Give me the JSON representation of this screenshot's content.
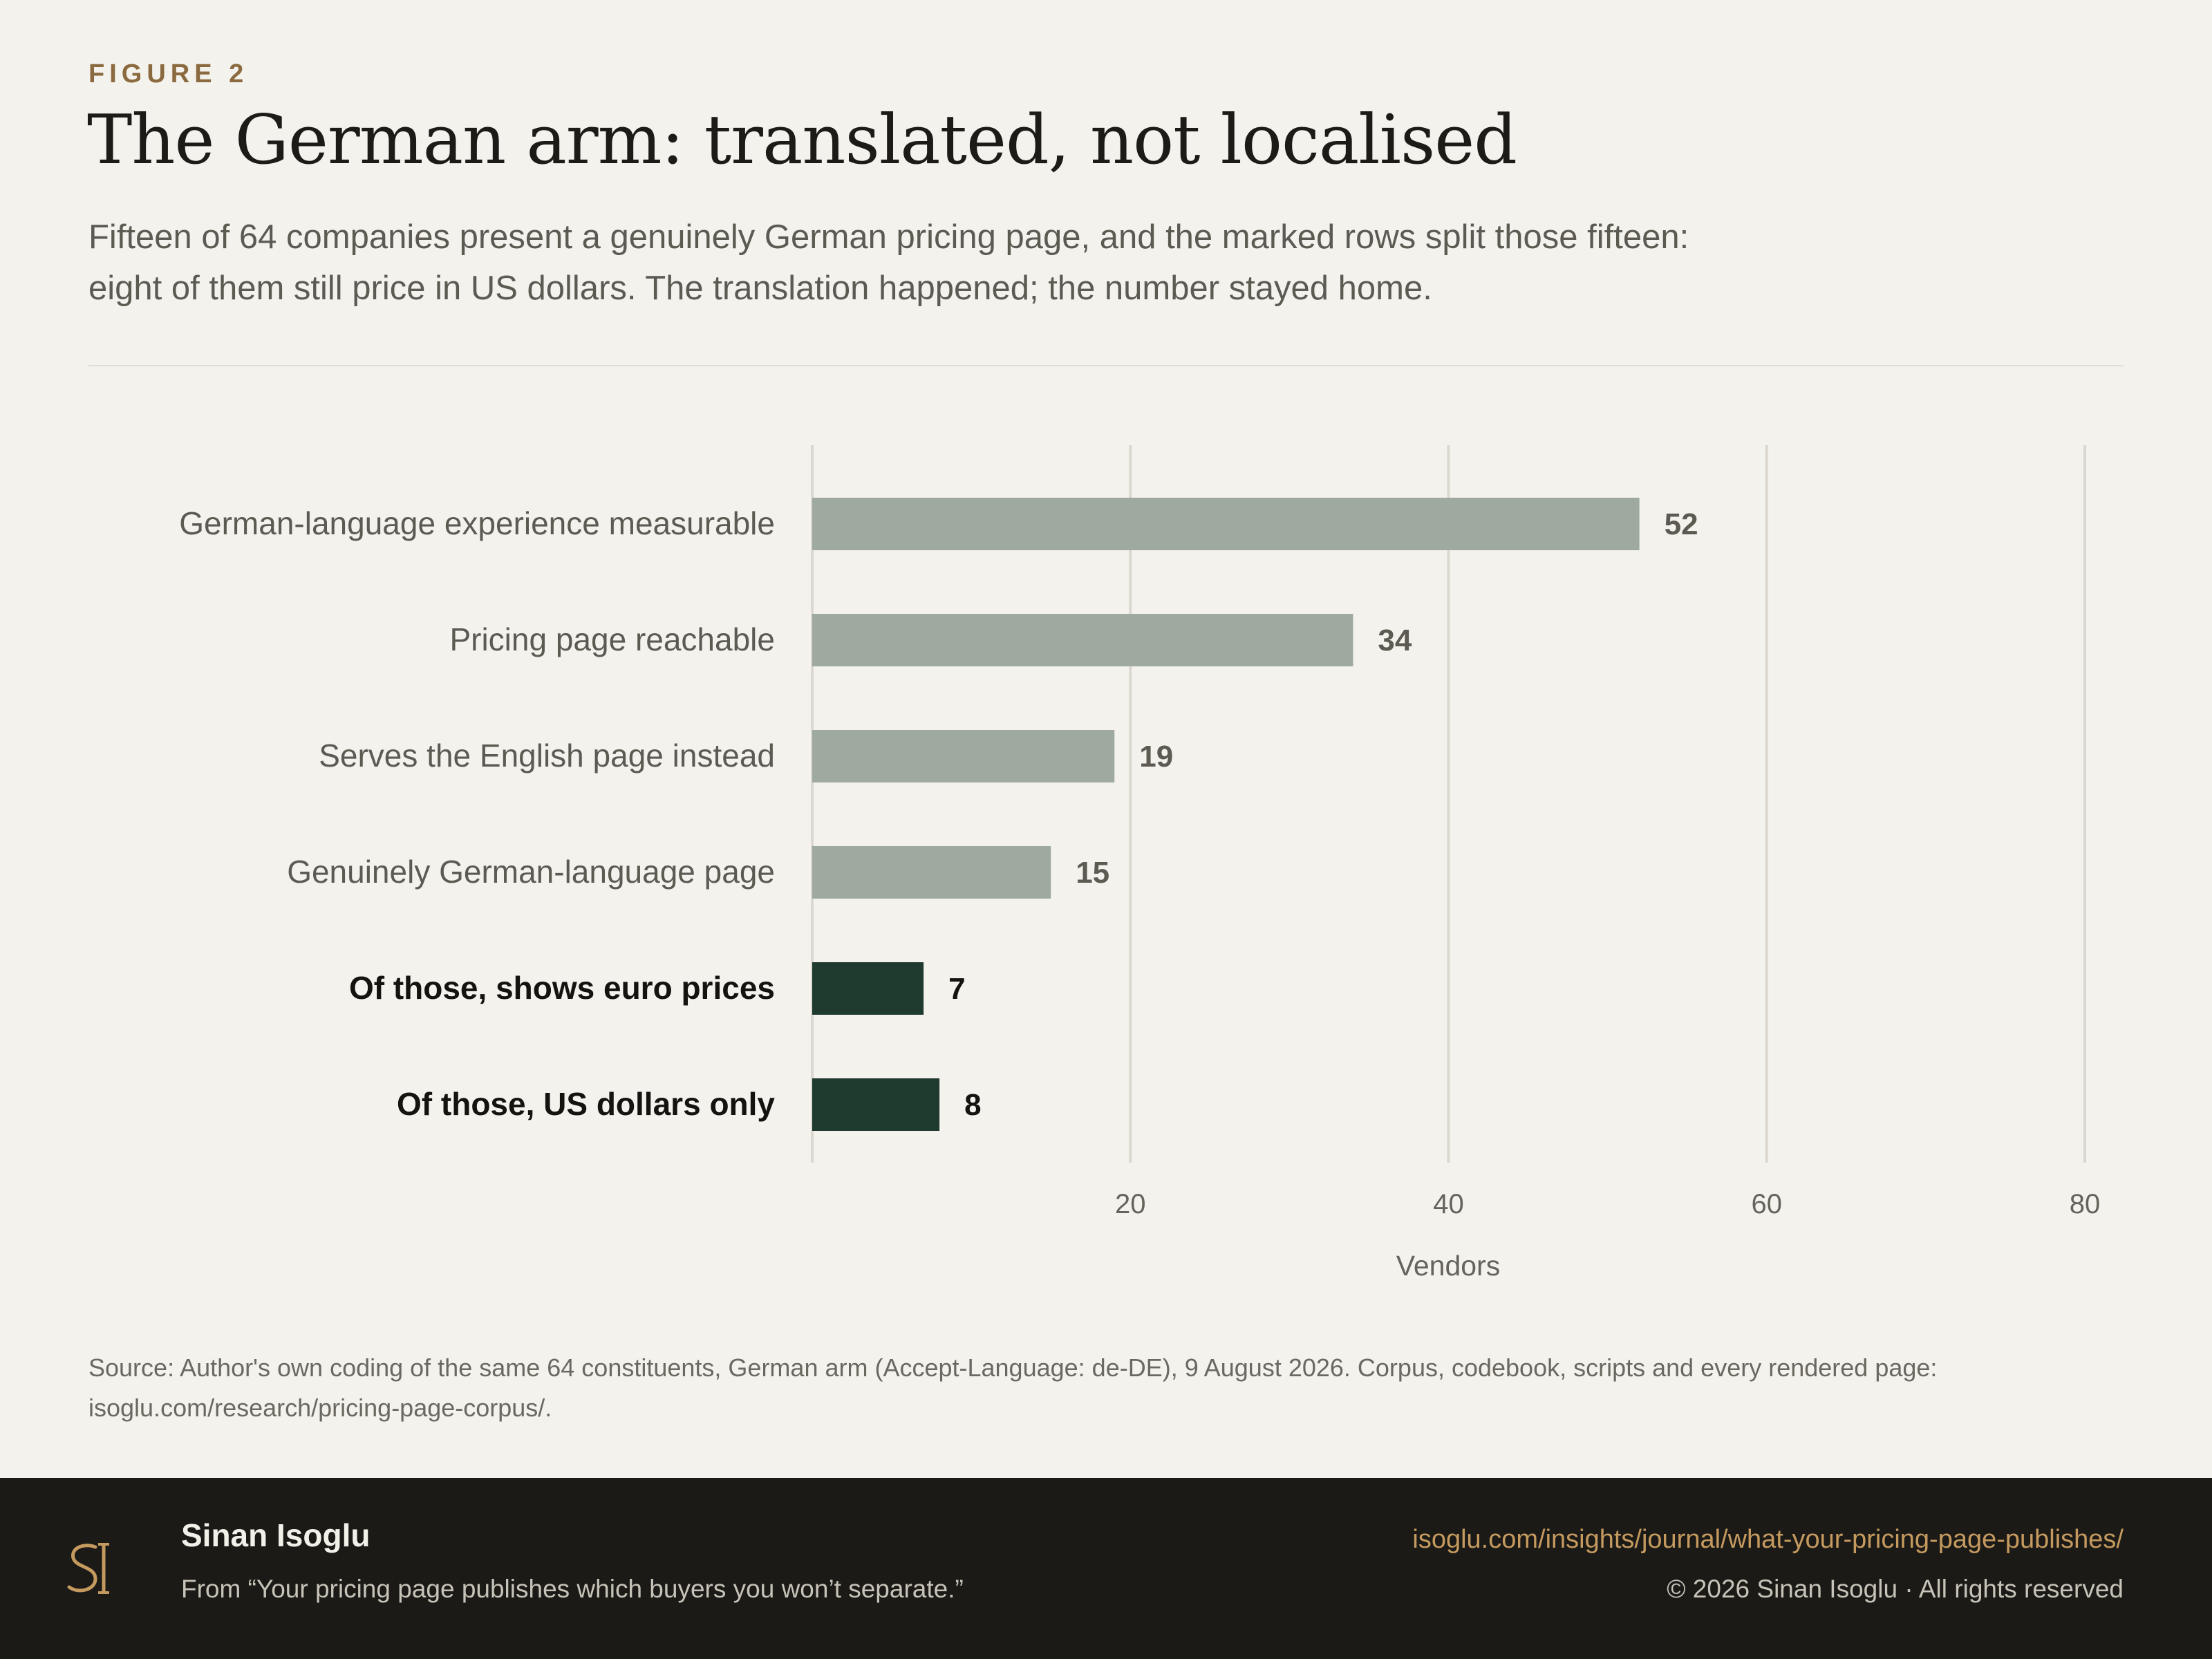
{
  "header": {
    "kicker": "FIGURE 2",
    "title": "The German arm: translated, not localised",
    "subtitle": "Fifteen of 64 companies present a genuinely German pricing page, and the marked rows split those fifteen: eight of them still price in US dollars. The translation happened; the number stayed home."
  },
  "chart_data": {
    "type": "bar",
    "orientation": "horizontal",
    "categories": [
      "German-language experience measurable",
      "Pricing page reachable",
      "Serves the English page instead",
      "Genuinely German-language page",
      "Of those, shows euro prices",
      "Of those, US dollars only"
    ],
    "values": [
      52,
      34,
      19,
      15,
      7,
      8
    ],
    "highlighted": [
      false,
      false,
      false,
      false,
      true,
      true
    ],
    "xlabel": "Vendors",
    "xlim": [
      0,
      80
    ],
    "xticks": [
      20,
      40,
      60,
      80
    ],
    "grid": true,
    "colors": {
      "bar": "#9eaaa0",
      "highlight": "#1f3a2f"
    }
  },
  "source": "Source: Author's own coding of the same 64 constituents, German arm (Accept-Language: de-DE), 9 August 2026. Corpus, codebook, scripts and every rendered page: isoglu.com/research/pricing-page-corpus/.",
  "footer": {
    "author": "Sinan Isoglu",
    "from": "From “Your pricing page publishes which buyers you won’t separate.”",
    "url": "isoglu.com/insights/journal/what-your-pricing-page-publishes/",
    "copyright": "© 2026 Sinan Isoglu · All rights reserved",
    "logo_icon": "si-monogram-icon",
    "colors": {
      "background": "#1b1a17",
      "accent": "#c59a5e"
    }
  }
}
